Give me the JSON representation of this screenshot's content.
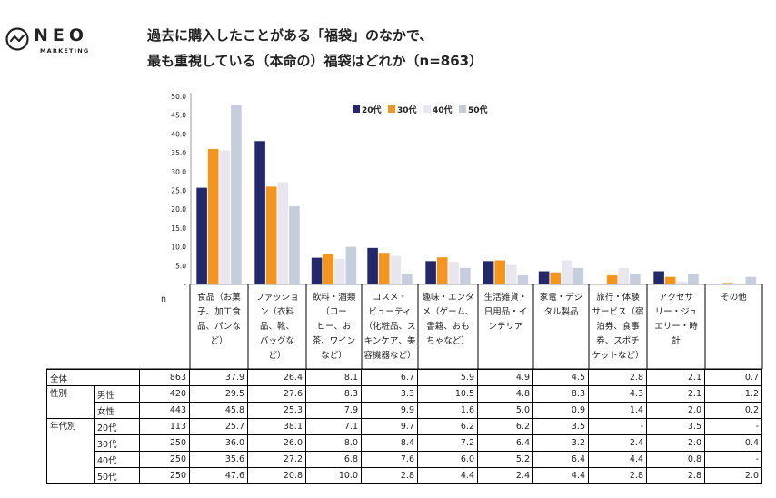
{
  "brand": {
    "name": "NEO",
    "sub": "MARKETING"
  },
  "title": {
    "line1": "過去に購入したことがある「福袋」のなかで、",
    "line2": "最も重視している（本命の）福袋はどれか（n=863）"
  },
  "colors": {
    "20代": "#24286b",
    "30代": "#f5951d",
    "40代": "#e8e6ef",
    "50代": "#c6cddd",
    "text": "#222222"
  },
  "chart_data": {
    "type": "bar",
    "ylim": [
      0,
      50
    ],
    "yticks": [
      "50.0",
      "45.0",
      "40.0",
      "35.0",
      "30.0",
      "25.0",
      "20.0",
      "15.0",
      "10.0",
      "5.0",
      "-"
    ],
    "legend_position": "top-center",
    "n_label": "n",
    "categories": [
      [
        "食品（お菓",
        "子、加工食",
        "品、パンな",
        "ど）"
      ],
      [
        "ファッショ",
        "ン（衣料",
        "品、靴、",
        "バッグな",
        "ど）"
      ],
      [
        "飲料・酒類",
        "（コー",
        "ヒー、お",
        "茶、ワイン",
        "など）"
      ],
      [
        "コスメ・",
        "ビューティ",
        "（化粧品、ス",
        "キンケア、美",
        "容機器など）"
      ],
      [
        "趣味・エンタ",
        "メ（ゲーム、",
        "書籍、おも",
        "ちゃなど）"
      ],
      [
        "生活雑貨・",
        "日用品・イ",
        "ンテリア"
      ],
      [
        "家電・デジ",
        "タル製品"
      ],
      [
        "旅行・体験",
        "サービス（宿",
        "泊券、食事",
        "券、スポチ",
        "ケットなど）"
      ],
      [
        "アクセサ",
        "リー・ジュ",
        "エリー・時",
        "計"
      ],
      [
        "その他"
      ]
    ],
    "series": [
      {
        "name": "20代",
        "values": [
          25.7,
          38.1,
          7.1,
          9.7,
          6.2,
          6.2,
          3.5,
          0,
          3.5,
          0
        ]
      },
      {
        "name": "30代",
        "values": [
          36.0,
          26.0,
          8.0,
          8.4,
          7.2,
          6.4,
          3.2,
          2.4,
          2.0,
          0.4
        ]
      },
      {
        "name": "40代",
        "values": [
          35.6,
          27.2,
          6.8,
          7.6,
          6.0,
          5.2,
          6.4,
          4.4,
          0.8,
          0
        ]
      },
      {
        "name": "50代",
        "values": [
          47.6,
          20.8,
          10.0,
          2.8,
          4.4,
          2.4,
          4.4,
          2.8,
          2.8,
          2.0
        ]
      }
    ]
  },
  "table": {
    "rows": [
      {
        "group": "全体",
        "sub": "",
        "n": "863",
        "values": [
          "37.9",
          "26.4",
          "8.1",
          "6.7",
          "5.9",
          "4.9",
          "4.5",
          "2.8",
          "2.1",
          "0.7"
        ]
      },
      {
        "group": "性別",
        "sub": "男性",
        "n": "420",
        "values": [
          "29.5",
          "27.6",
          "8.3",
          "3.3",
          "10.5",
          "4.8",
          "8.3",
          "4.3",
          "2.1",
          "1.2"
        ]
      },
      {
        "group": "",
        "sub": "女性",
        "n": "443",
        "values": [
          "45.8",
          "25.3",
          "7.9",
          "9.9",
          "1.6",
          "5.0",
          "0.9",
          "1.4",
          "2.0",
          "0.2"
        ]
      },
      {
        "group": "年代別",
        "sub": "20代",
        "n": "113",
        "values": [
          "25.7",
          "38.1",
          "7.1",
          "9.7",
          "6.2",
          "6.2",
          "3.5",
          "-",
          "3.5",
          "-"
        ]
      },
      {
        "group": "",
        "sub": "30代",
        "n": "250",
        "values": [
          "36.0",
          "26.0",
          "8.0",
          "8.4",
          "7.2",
          "6.4",
          "3.2",
          "2.4",
          "2.0",
          "0.4"
        ]
      },
      {
        "group": "",
        "sub": "40代",
        "n": "250",
        "values": [
          "35.6",
          "27.2",
          "6.8",
          "7.6",
          "6.0",
          "5.2",
          "6.4",
          "4.4",
          "0.8",
          "-"
        ]
      },
      {
        "group": "",
        "sub": "50代",
        "n": "250",
        "values": [
          "47.6",
          "20.8",
          "10.0",
          "2.8",
          "4.4",
          "2.4",
          "4.4",
          "2.8",
          "2.8",
          "2.0"
        ]
      }
    ]
  }
}
